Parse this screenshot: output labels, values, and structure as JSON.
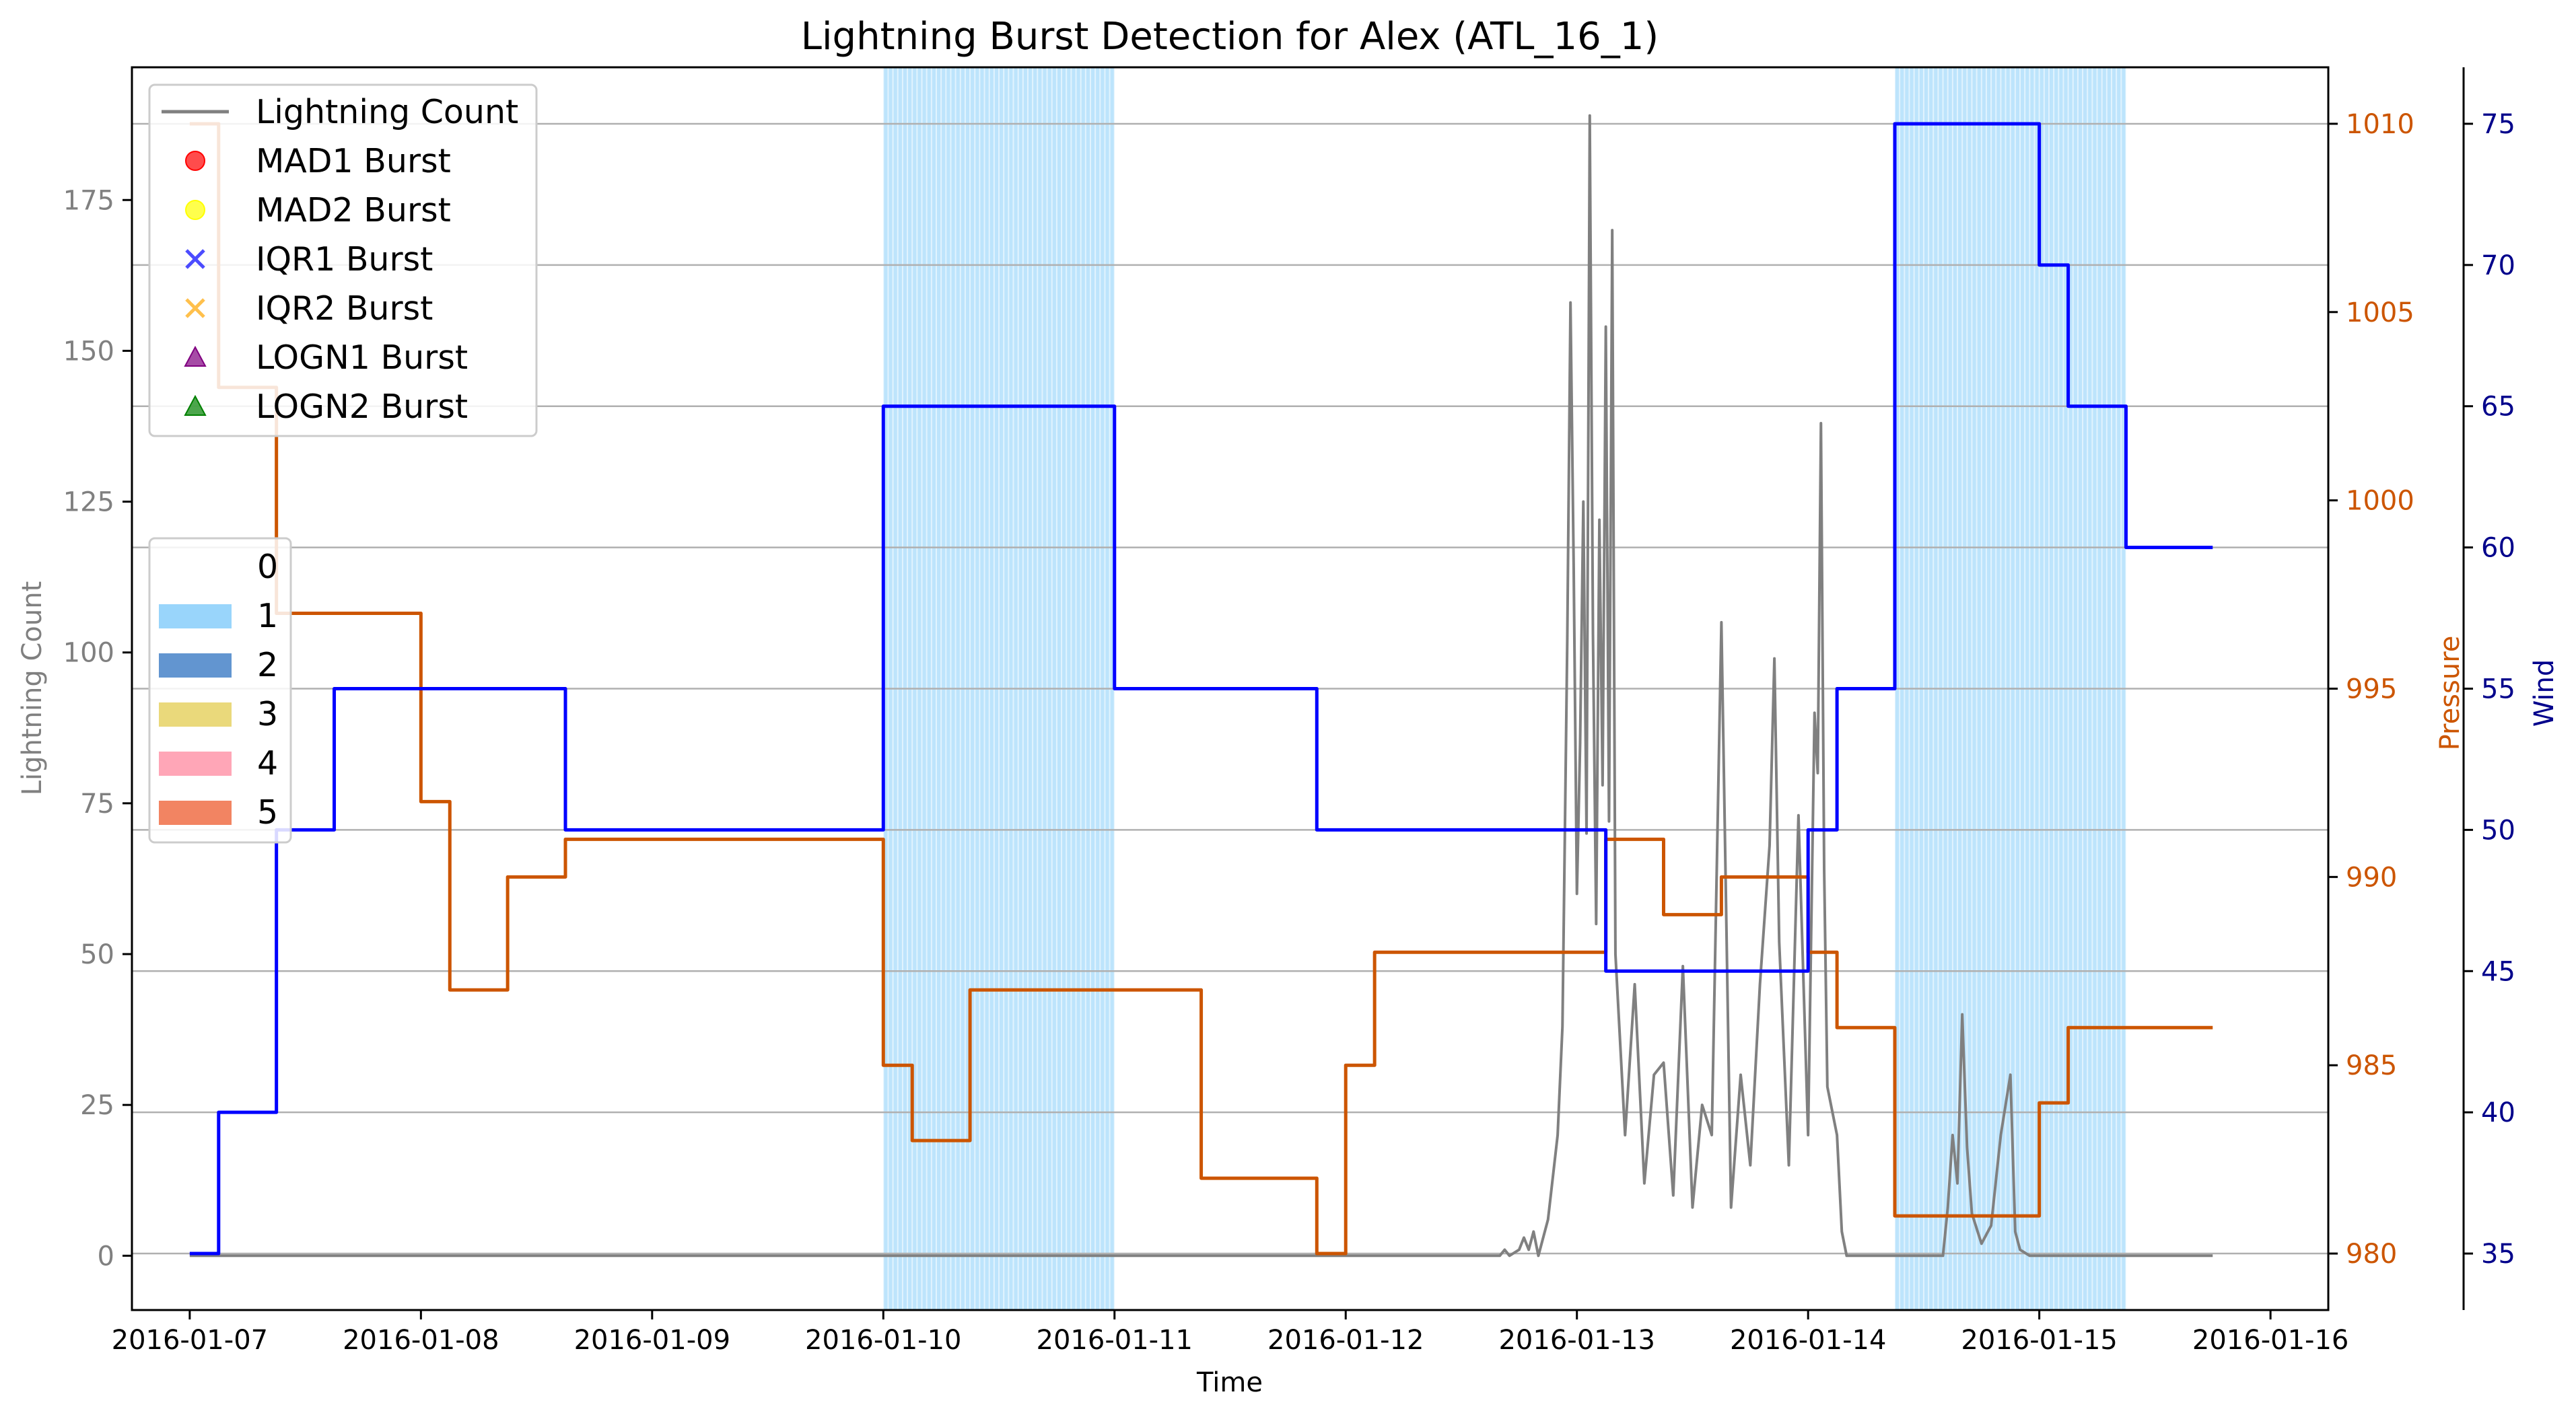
{
  "chart_data": {
    "type": "line",
    "title": "Lightning Burst Detection for Alex (ATL_16_1)",
    "xlabel": "Time",
    "ylabel_left": "Lightning Count",
    "ylabel_pressure": "Pressure",
    "ylabel_wind": "Wind",
    "x_range": [
      "2016-01-06 18:00",
      "2016-01-16 06:00"
    ],
    "x_ticks": [
      "2016-01-07",
      "2016-01-08",
      "2016-01-09",
      "2016-01-10",
      "2016-01-11",
      "2016-01-12",
      "2016-01-13",
      "2016-01-14",
      "2016-01-15",
      "2016-01-16"
    ],
    "ylim_left": [
      -9,
      197
    ],
    "yticks_left": [
      0,
      25,
      50,
      75,
      100,
      125,
      150,
      175
    ],
    "ylim_pressure": [
      978.5,
      1011.5
    ],
    "yticks_pressure": [
      980,
      985,
      990,
      995,
      1000,
      1005,
      1010
    ],
    "ylim_wind": [
      33,
      77
    ],
    "yticks_wind": [
      35,
      40,
      45,
      50,
      55,
      60,
      65,
      70,
      75
    ],
    "grid": true,
    "colors": {
      "lightning": "#808080",
      "pressure": "#cc5500",
      "wind": "#0000ff",
      "wind_axis": "#00008b",
      "cat1": "#87cefa"
    },
    "legend_series": {
      "placement": "upper-left",
      "entries": [
        {
          "label": "Lightning Count",
          "marker": "line",
          "color": "#808080"
        },
        {
          "label": "MAD1 Burst",
          "marker": "circle",
          "color": "#ff0000"
        },
        {
          "label": "MAD2 Burst",
          "marker": "circle",
          "color": "#ffff00"
        },
        {
          "label": "IQR1 Burst",
          "marker": "x",
          "color": "#0000ff"
        },
        {
          "label": "IQR2 Burst",
          "marker": "x",
          "color": "#ffa500"
        },
        {
          "label": "LOGN1 Burst",
          "marker": "triangle",
          "color": "#800080"
        },
        {
          "label": "LOGN2 Burst",
          "marker": "triangle",
          "color": "#008000"
        }
      ]
    },
    "legend_category": {
      "placement": "center-left",
      "entries": [
        {
          "label": "0",
          "color": "#ffffff"
        },
        {
          "label": "1",
          "color": "#87cefa"
        },
        {
          "label": "2",
          "color": "#4682c8"
        },
        {
          "label": "3",
          "color": "#e6d264"
        },
        {
          "label": "4",
          "color": "#ff96aa"
        },
        {
          "label": "5",
          "color": "#f06e46"
        }
      ]
    },
    "category_spans": [
      {
        "category": 1,
        "start": "2016-01-10 00:00",
        "end": "2016-01-11 00:00"
      },
      {
        "category": 1,
        "start": "2016-01-14 09:00",
        "end": "2016-01-15 09:00"
      }
    ],
    "pressure_series": [
      {
        "start": "2016-01-07 00:00",
        "end": "2016-01-07 03:00",
        "value": 1010
      },
      {
        "start": "2016-01-07 03:00",
        "end": "2016-01-07 09:00",
        "value": 1003
      },
      {
        "start": "2016-01-07 09:00",
        "end": "2016-01-08 00:00",
        "value": 997
      },
      {
        "start": "2016-01-08 00:00",
        "end": "2016-01-08 03:00",
        "value": 992
      },
      {
        "start": "2016-01-08 03:00",
        "end": "2016-01-08 09:00",
        "value": 987
      },
      {
        "start": "2016-01-08 09:00",
        "end": "2016-01-08 15:00",
        "value": 990
      },
      {
        "start": "2016-01-08 15:00",
        "end": "2016-01-10 00:00",
        "value": 991
      },
      {
        "start": "2016-01-10 00:00",
        "end": "2016-01-10 03:00",
        "value": 985
      },
      {
        "start": "2016-01-10 03:00",
        "end": "2016-01-10 09:00",
        "value": 983
      },
      {
        "start": "2016-01-10 09:00",
        "end": "2016-01-11 09:00",
        "value": 987
      },
      {
        "start": "2016-01-11 09:00",
        "end": "2016-01-11 21:00",
        "value": 982
      },
      {
        "start": "2016-01-11 21:00",
        "end": "2016-01-12 00:00",
        "value": 980
      },
      {
        "start": "2016-01-12 00:00",
        "end": "2016-01-12 03:00",
        "value": 985
      },
      {
        "start": "2016-01-12 03:00",
        "end": "2016-01-13 03:00",
        "value": 988
      },
      {
        "start": "2016-01-13 03:00",
        "end": "2016-01-13 09:00",
        "value": 991
      },
      {
        "start": "2016-01-13 09:00",
        "end": "2016-01-13 15:00",
        "value": 989
      },
      {
        "start": "2016-01-13 15:00",
        "end": "2016-01-14 00:00",
        "value": 990
      },
      {
        "start": "2016-01-14 00:00",
        "end": "2016-01-14 03:00",
        "value": 988
      },
      {
        "start": "2016-01-14 03:00",
        "end": "2016-01-14 09:00",
        "value": 986
      },
      {
        "start": "2016-01-14 09:00",
        "end": "2016-01-15 00:00",
        "value": 981
      },
      {
        "start": "2016-01-15 00:00",
        "end": "2016-01-15 03:00",
        "value": 984
      },
      {
        "start": "2016-01-15 03:00",
        "end": "2016-01-15 18:00",
        "value": 986
      }
    ],
    "wind_series": [
      {
        "start": "2016-01-07 00:00",
        "end": "2016-01-07 03:00",
        "value": 35
      },
      {
        "start": "2016-01-07 03:00",
        "end": "2016-01-07 09:00",
        "value": 40
      },
      {
        "start": "2016-01-07 09:00",
        "end": "2016-01-07 15:00",
        "value": 50
      },
      {
        "start": "2016-01-07 15:00",
        "end": "2016-01-08 15:00",
        "value": 55
      },
      {
        "start": "2016-01-08 15:00",
        "end": "2016-01-10 00:00",
        "value": 50
      },
      {
        "start": "2016-01-10 00:00",
        "end": "2016-01-11 00:00",
        "value": 65
      },
      {
        "start": "2016-01-11 00:00",
        "end": "2016-01-11 21:00",
        "value": 55
      },
      {
        "start": "2016-01-11 21:00",
        "end": "2016-01-13 03:00",
        "value": 50
      },
      {
        "start": "2016-01-13 03:00",
        "end": "2016-01-14 00:00",
        "value": 45
      },
      {
        "start": "2016-01-14 00:00",
        "end": "2016-01-14 03:00",
        "value": 50
      },
      {
        "start": "2016-01-14 03:00",
        "end": "2016-01-14 09:00",
        "value": 55
      },
      {
        "start": "2016-01-14 09:00",
        "end": "2016-01-15 00:00",
        "value": 75
      },
      {
        "start": "2016-01-15 00:00",
        "end": "2016-01-15 03:00",
        "value": 70
      },
      {
        "start": "2016-01-15 03:00",
        "end": "2016-01-15 09:00",
        "value": 65
      },
      {
        "start": "2016-01-15 09:00",
        "end": "2016-01-15 18:00",
        "value": 60
      }
    ],
    "lightning_series": [
      {
        "t": "2016-01-07 00:00",
        "v": 0
      },
      {
        "t": "2016-01-12 16:00",
        "v": 0
      },
      {
        "t": "2016-01-12 16:30",
        "v": 1
      },
      {
        "t": "2016-01-12 17:00",
        "v": 0
      },
      {
        "t": "2016-01-12 18:00",
        "v": 1
      },
      {
        "t": "2016-01-12 18:30",
        "v": 3
      },
      {
        "t": "2016-01-12 19:00",
        "v": 1
      },
      {
        "t": "2016-01-12 19:30",
        "v": 4
      },
      {
        "t": "2016-01-12 20:00",
        "v": 0
      },
      {
        "t": "2016-01-12 21:00",
        "v": 6
      },
      {
        "t": "2016-01-12 21:30",
        "v": 13
      },
      {
        "t": "2016-01-12 22:00",
        "v": 20
      },
      {
        "t": "2016-01-12 22:30",
        "v": 38
      },
      {
        "t": "2016-01-12 23:00",
        "v": 102
      },
      {
        "t": "2016-01-12 23:20",
        "v": 158
      },
      {
        "t": "2016-01-12 23:40",
        "v": 114
      },
      {
        "t": "2016-01-13 00:00",
        "v": 60
      },
      {
        "t": "2016-01-13 00:20",
        "v": 85
      },
      {
        "t": "2016-01-13 00:40",
        "v": 125
      },
      {
        "t": "2016-01-13 01:00",
        "v": 70
      },
      {
        "t": "2016-01-13 01:20",
        "v": 189
      },
      {
        "t": "2016-01-13 01:40",
        "v": 103
      },
      {
        "t": "2016-01-13 02:00",
        "v": 55
      },
      {
        "t": "2016-01-13 02:20",
        "v": 122
      },
      {
        "t": "2016-01-13 02:40",
        "v": 78
      },
      {
        "t": "2016-01-13 03:00",
        "v": 154
      },
      {
        "t": "2016-01-13 03:20",
        "v": 72
      },
      {
        "t": "2016-01-13 03:40",
        "v": 170
      },
      {
        "t": "2016-01-13 04:00",
        "v": 50
      },
      {
        "t": "2016-01-13 05:00",
        "v": 20
      },
      {
        "t": "2016-01-13 06:00",
        "v": 45
      },
      {
        "t": "2016-01-13 07:00",
        "v": 12
      },
      {
        "t": "2016-01-13 08:00",
        "v": 30
      },
      {
        "t": "2016-01-13 09:00",
        "v": 32
      },
      {
        "t": "2016-01-13 10:00",
        "v": 10
      },
      {
        "t": "2016-01-13 11:00",
        "v": 48
      },
      {
        "t": "2016-01-13 12:00",
        "v": 8
      },
      {
        "t": "2016-01-13 13:00",
        "v": 25
      },
      {
        "t": "2016-01-13 14:00",
        "v": 20
      },
      {
        "t": "2016-01-13 15:00",
        "v": 105
      },
      {
        "t": "2016-01-13 16:00",
        "v": 8
      },
      {
        "t": "2016-01-13 17:00",
        "v": 30
      },
      {
        "t": "2016-01-13 18:00",
        "v": 15
      },
      {
        "t": "2016-01-13 19:00",
        "v": 45
      },
      {
        "t": "2016-01-13 20:00",
        "v": 68
      },
      {
        "t": "2016-01-13 20:30",
        "v": 99
      },
      {
        "t": "2016-01-13 21:00",
        "v": 52
      },
      {
        "t": "2016-01-13 22:00",
        "v": 15
      },
      {
        "t": "2016-01-13 23:00",
        "v": 73
      },
      {
        "t": "2016-01-14 00:00",
        "v": 20
      },
      {
        "t": "2016-01-14 00:40",
        "v": 90
      },
      {
        "t": "2016-01-14 01:00",
        "v": 80
      },
      {
        "t": "2016-01-14 01:20",
        "v": 138
      },
      {
        "t": "2016-01-14 01:40",
        "v": 64
      },
      {
        "t": "2016-01-14 02:00",
        "v": 28
      },
      {
        "t": "2016-01-14 03:00",
        "v": 20
      },
      {
        "t": "2016-01-14 03:30",
        "v": 4
      },
      {
        "t": "2016-01-14 04:00",
        "v": 0
      },
      {
        "t": "2016-01-14 14:00",
        "v": 0
      },
      {
        "t": "2016-01-14 14:30",
        "v": 8
      },
      {
        "t": "2016-01-14 15:00",
        "v": 20
      },
      {
        "t": "2016-01-14 15:30",
        "v": 12
      },
      {
        "t": "2016-01-14 16:00",
        "v": 40
      },
      {
        "t": "2016-01-14 16:30",
        "v": 18
      },
      {
        "t": "2016-01-14 17:00",
        "v": 7
      },
      {
        "t": "2016-01-14 18:00",
        "v": 2
      },
      {
        "t": "2016-01-14 19:00",
        "v": 5
      },
      {
        "t": "2016-01-14 20:00",
        "v": 20
      },
      {
        "t": "2016-01-14 21:00",
        "v": 30
      },
      {
        "t": "2016-01-14 21:30",
        "v": 4
      },
      {
        "t": "2016-01-14 22:00",
        "v": 1
      },
      {
        "t": "2016-01-14 23:00",
        "v": 0
      },
      {
        "t": "2016-01-15 18:00",
        "v": 0
      }
    ]
  }
}
